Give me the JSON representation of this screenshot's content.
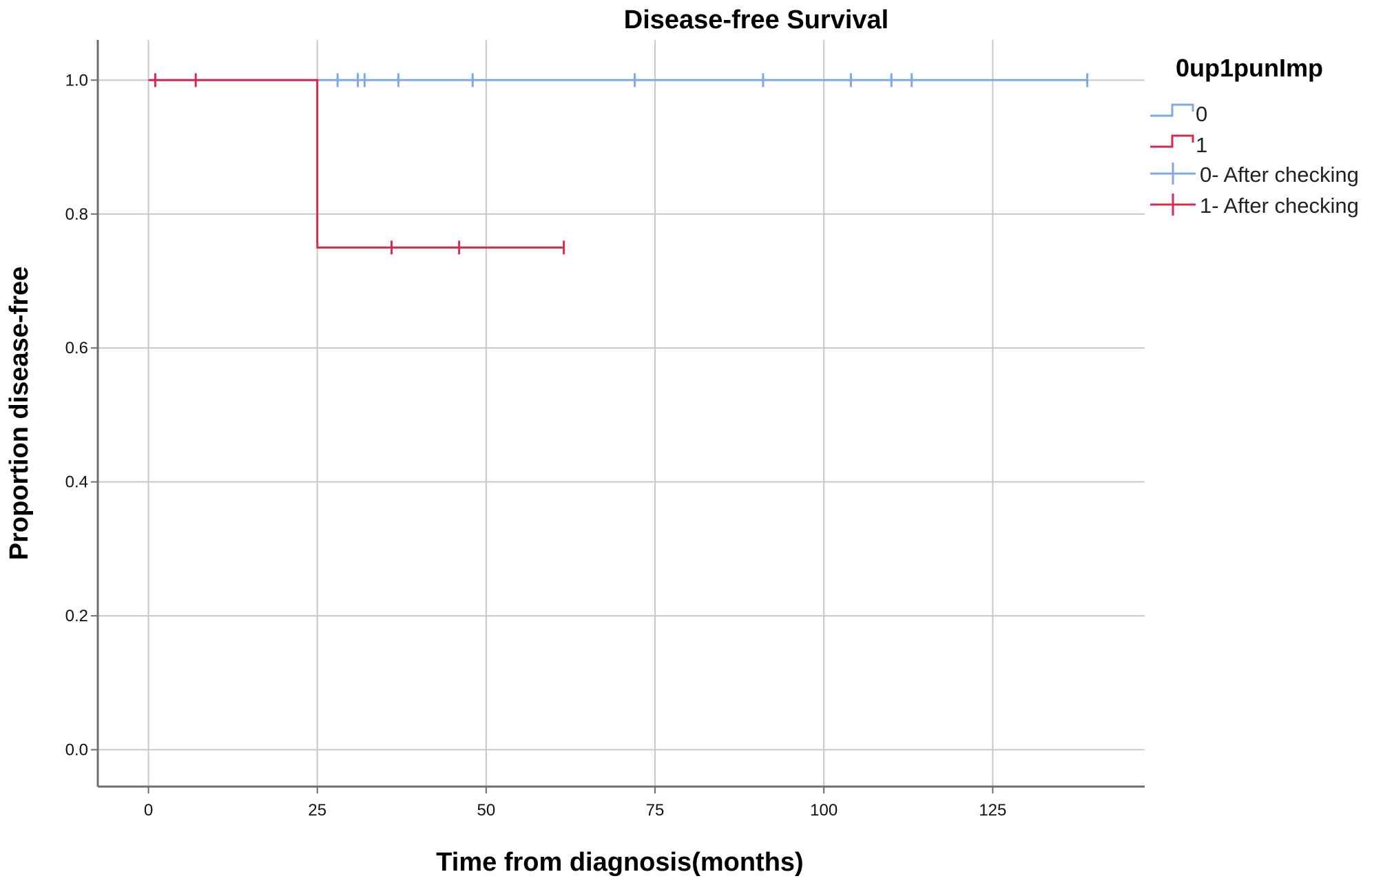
{
  "chart_data": {
    "type": "line",
    "subtype": "kaplan-meier step",
    "title": "Disease-free Survival",
    "xlabel": "Time from diagnosis(months)",
    "ylabel": "Proportion disease-free",
    "xlim": [
      -7.5,
      147.5
    ],
    "ylim": [
      -0.055,
      1.06
    ],
    "xticks": [
      0,
      25,
      50,
      75,
      100,
      125
    ],
    "yticks": [
      0.0,
      0.2,
      0.4,
      0.6,
      0.8,
      1.0
    ],
    "ytick_labels": [
      "0.0",
      "0.2",
      "0.4",
      "0.6",
      "0.8",
      "1.0"
    ],
    "grid": true,
    "legend_position": "right",
    "legend_title": "0up1punImp",
    "colors": {
      "series0": "#7fa8e6",
      "series1": "#d9294f",
      "grid": "#c8c8c8",
      "axis": "#6e6e6e"
    },
    "series": [
      {
        "name": "0",
        "censored_name": "0- After checking",
        "color": "#7fa8e6",
        "steps": [
          [
            0,
            1.0
          ],
          [
            139,
            1.0
          ]
        ],
        "censored": [
          [
            28,
            1.0
          ],
          [
            31,
            1.0
          ],
          [
            32,
            1.0
          ],
          [
            37,
            1.0
          ],
          [
            48,
            1.0
          ],
          [
            72,
            1.0
          ],
          [
            91,
            1.0
          ],
          [
            104,
            1.0
          ],
          [
            110,
            1.0
          ],
          [
            113,
            1.0
          ],
          [
            139,
            1.0
          ]
        ]
      },
      {
        "name": "1",
        "censored_name": "1- After checking",
        "color": "#d9294f",
        "steps": [
          [
            0,
            1.0
          ],
          [
            25,
            1.0
          ],
          [
            25,
            0.75
          ],
          [
            61.5,
            0.75
          ]
        ],
        "censored": [
          [
            1,
            1.0
          ],
          [
            7,
            1.0
          ],
          [
            36,
            0.75
          ],
          [
            46,
            0.75
          ],
          [
            61.5,
            0.75
          ]
        ]
      }
    ]
  }
}
